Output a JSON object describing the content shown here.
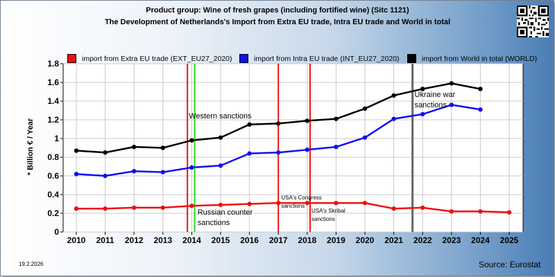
{
  "header": {
    "title_line1": "Product group: Wine of fresh grapes (including fortified wine) (Sitc 1121)",
    "title_line2": "The Development of Netherlands's Import from Extra EU trade, Intra EU trade and World in total"
  },
  "footer": {
    "date": "19.2.2026",
    "source": "Source: Eurostat"
  },
  "chart_data": {
    "type": "line",
    "ylabel": "* Billion € / Year",
    "xlabel": "",
    "ylim": [
      0,
      1.8
    ],
    "y_ticks": [
      "0",
      "0.2",
      "0.4",
      "0.6",
      "0.8",
      "1",
      "1.2",
      "1.4",
      "1.6",
      "1.8"
    ],
    "categories": [
      "2010",
      "2011",
      "2012",
      "2013",
      "2014",
      "2015",
      "2016",
      "2017",
      "2018",
      "2019",
      "2020",
      "2021",
      "2022",
      "2023",
      "2024",
      "2025"
    ],
    "grid": true,
    "legend_position": "top",
    "series": [
      {
        "name": "import from Extra EU trade (EXT_EU27_2020)",
        "color": "#ee1111",
        "values": [
          0.25,
          0.25,
          0.26,
          0.26,
          0.28,
          0.29,
          0.3,
          0.31,
          0.31,
          0.31,
          0.31,
          0.25,
          0.26,
          0.22,
          0.22,
          0.21
        ]
      },
      {
        "name": "import from Intra EU trade (INT_EU27_2020)",
        "color": "#1010ee",
        "values": [
          0.62,
          0.6,
          0.65,
          0.64,
          0.69,
          0.71,
          0.84,
          0.85,
          0.88,
          0.91,
          1.01,
          1.21,
          1.26,
          1.36,
          1.31,
          null
        ]
      },
      {
        "name": "import from World in total (WORLD)",
        "color": "#000000",
        "values": [
          0.87,
          0.85,
          0.91,
          0.9,
          0.98,
          1.01,
          1.15,
          1.16,
          1.19,
          1.21,
          1.32,
          1.46,
          1.53,
          1.59,
          1.53,
          null
        ]
      }
    ],
    "annotations": [
      {
        "text": "Western sanctions",
        "size": 11
      },
      {
        "text": "Russian counter\nsanctions",
        "size": 11
      },
      {
        "text": "USA's Congress\nsanctions",
        "size": 8
      },
      {
        "text": "USA's Skribal\nsanctions",
        "size": 8
      },
      {
        "text": "Ukraine war\nsanctions",
        "size": 11
      }
    ],
    "event_lines": [
      {
        "x": 2013.85,
        "color": "#ee1111"
      },
      {
        "x": 2014.1,
        "color": "#22dd22"
      },
      {
        "x": 2017.0,
        "color": "#ee1111"
      },
      {
        "x": 2018.1,
        "color": "#ee1111"
      },
      {
        "x": 2021.65,
        "color": "#666666"
      }
    ]
  }
}
